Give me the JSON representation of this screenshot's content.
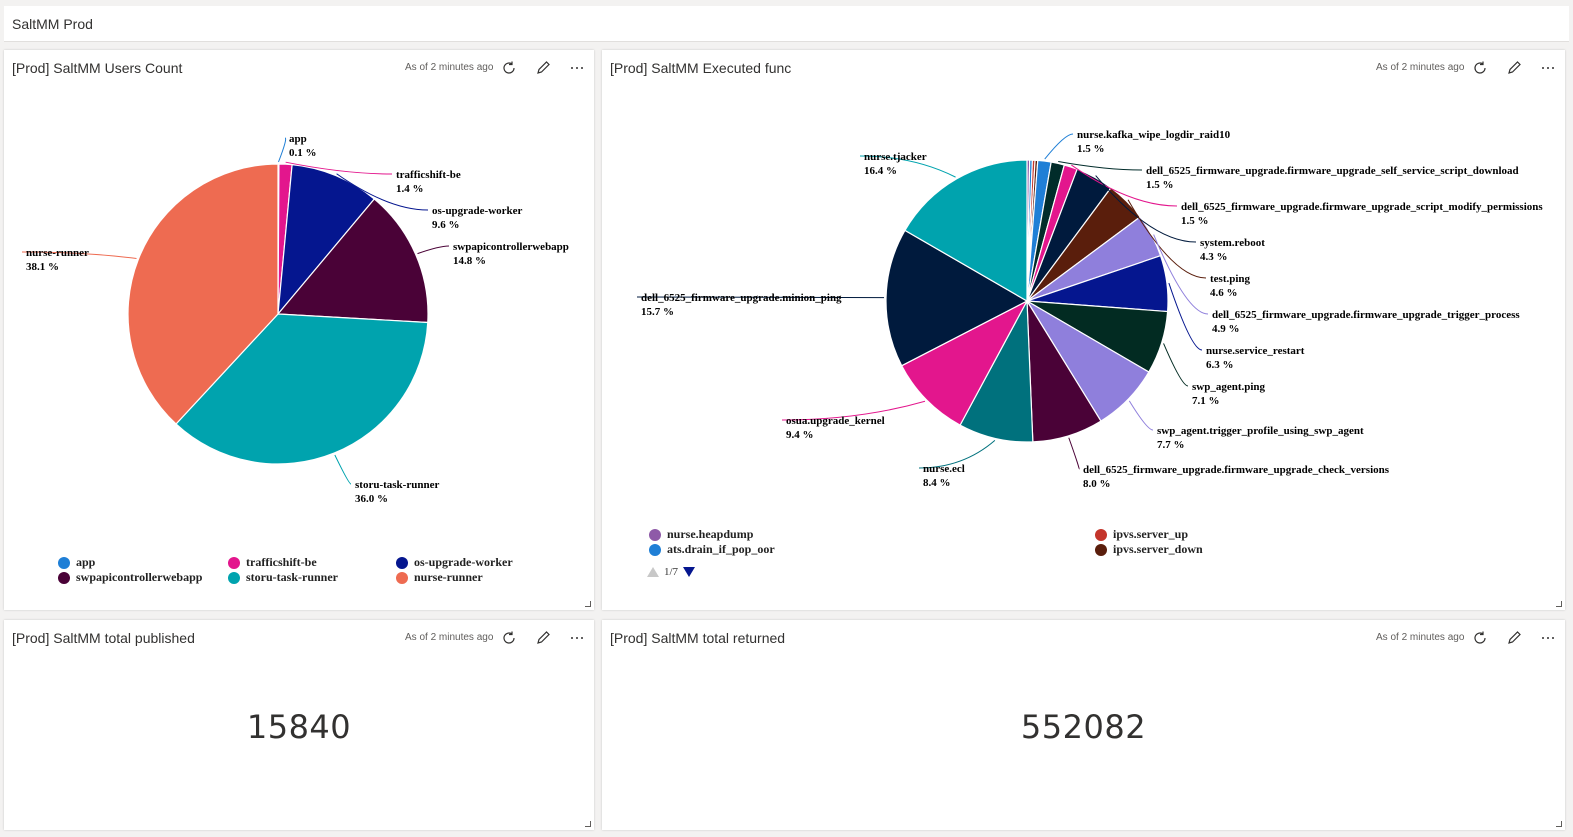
{
  "dashboard": {
    "title": "SaltMM Prod"
  },
  "tiles": {
    "users": {
      "title": "[Prod] SaltMM Users Count",
      "meta": "As of 2 minutes ago",
      "chart_data": {
        "type": "pie",
        "title": "[Prod] SaltMM Users Count",
        "categories": [
          "app",
          "trafficshift-be",
          "os-upgrade-worker",
          "swpapicontrollerwebapp",
          "storu-task-runner",
          "nurse-runner"
        ],
        "values": [
          0.1,
          1.4,
          9.6,
          14.8,
          36.0,
          38.1
        ],
        "labels": [
          "0.1 %",
          "1.4 %",
          "9.6 %",
          "14.8 %",
          "36.0 %",
          "38.1 %"
        ],
        "colors": [
          "#1f7fd6",
          "#e3168d",
          "#05168f",
          "#4a0237",
          "#00a3ae",
          "#ee6b51"
        ],
        "legend_position": "bottom"
      }
    },
    "func": {
      "title": "[Prod] SaltMM Executed func",
      "meta": "As of 2 minutes ago",
      "chart_data": {
        "type": "pie",
        "title": "[Prod] SaltMM Executed func",
        "categories": [
          "nurse.heapdump",
          "ats.drain_if_pop_oor",
          "ipvs.server_up",
          "ipvs.server_down",
          "nurse.kafka_wipe_logdir_raid10",
          "dell_6525_firmware_upgrade.firmware_upgrade_self_service_script_download",
          "dell_6525_firmware_upgrade.firmware_upgrade_script_modify_permissions",
          "system.reboot",
          "test.ping",
          "dell_6525_firmware_upgrade.firmware_upgrade_trigger_process",
          "nurse.service_restart",
          "swp_agent.ping",
          "swp_agent.trigger_profile_using_swp_agent",
          "dell_6525_firmware_upgrade.firmware_upgrade_check_versions",
          "nurse.ecl",
          "osua.upgrade_kernel",
          "dell_6525_firmware_upgrade.minion_ping",
          "nurse.tjacker"
        ],
        "values": [
          0.3,
          0.3,
          0.3,
          0.3,
          1.5,
          1.5,
          1.5,
          4.3,
          4.6,
          4.9,
          6.3,
          7.1,
          7.7,
          8.0,
          8.4,
          9.4,
          15.7,
          16.4
        ],
        "labels": [
          "",
          "",
          "",
          "",
          "1.5 %",
          "1.5 %",
          "1.5 %",
          "4.3 %",
          "4.6 %",
          "4.9 %",
          "6.3 %",
          "7.1 %",
          "7.7 %",
          "8.0 %",
          "8.4 %",
          "9.4 %",
          "15.7 %",
          "16.4 %"
        ],
        "colors": [
          "#8e5aa8",
          "#1f7fd6",
          "#c4352b",
          "#5a1e0c",
          "#1f7fd6",
          "#012c2a",
          "#e3168d",
          "#001a3d",
          "#5a1e0c",
          "#8f7fdc",
          "#05168f",
          "#022b22",
          "#8f7fdc",
          "#4a0237",
          "#00717d",
          "#e3168d",
          "#001a3d",
          "#00a3ae"
        ],
        "legend_position": "bottom",
        "legend_visible": [
          "nurse.heapdump",
          "ipvs.server_up",
          "ats.drain_if_pop_oor",
          "ipvs.server_down"
        ],
        "legend_colors": [
          "#8e5aa8",
          "#c4352b",
          "#1f7fd6",
          "#5a1e0c"
        ]
      },
      "pager": "1/7"
    },
    "published": {
      "title": "[Prod] SaltMM total published",
      "meta": "As of 2 minutes ago",
      "value": "15840"
    },
    "returned": {
      "title": "[Prod] SaltMM total returned",
      "meta": "As of 2 minutes ago",
      "value": "552082"
    }
  },
  "icons": {
    "refresh": "refresh-icon",
    "edit": "edit-icon",
    "more": "more-icon"
  }
}
